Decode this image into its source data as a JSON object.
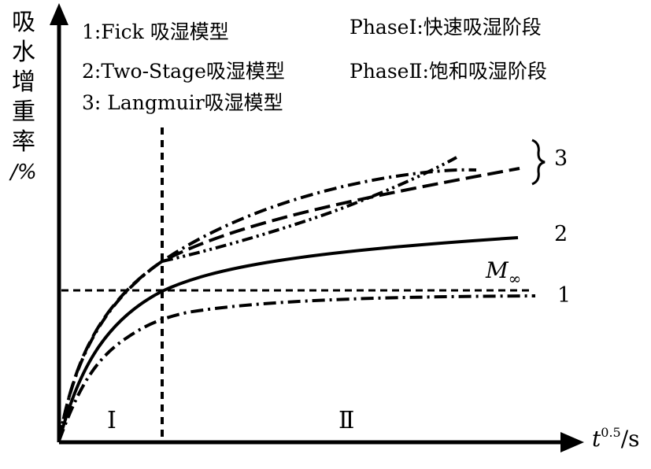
{
  "y_axis_label": [
    "吸",
    "水",
    "增",
    "重",
    "率",
    "/%"
  ],
  "x_axis_label": {
    "var": "t",
    "exp": "0.5",
    "unit": "/s"
  },
  "legend": [
    "1:Fick 吸湿模型",
    "2:Two-Stage吸湿模型",
    "3: Langmuir吸湿模型"
  ],
  "phases": [
    "PhaseⅠ:快速吸湿阶段",
    "PhaseⅡ:饱和吸湿阶段"
  ],
  "regions": [
    "Ⅰ",
    "Ⅱ"
  ],
  "curve_labels": [
    "1",
    "2",
    "3"
  ],
  "saturation_label": {
    "symbol": "M",
    "sub": "∞"
  },
  "colors": {
    "stroke": "#000000",
    "background": "#ffffff"
  }
}
